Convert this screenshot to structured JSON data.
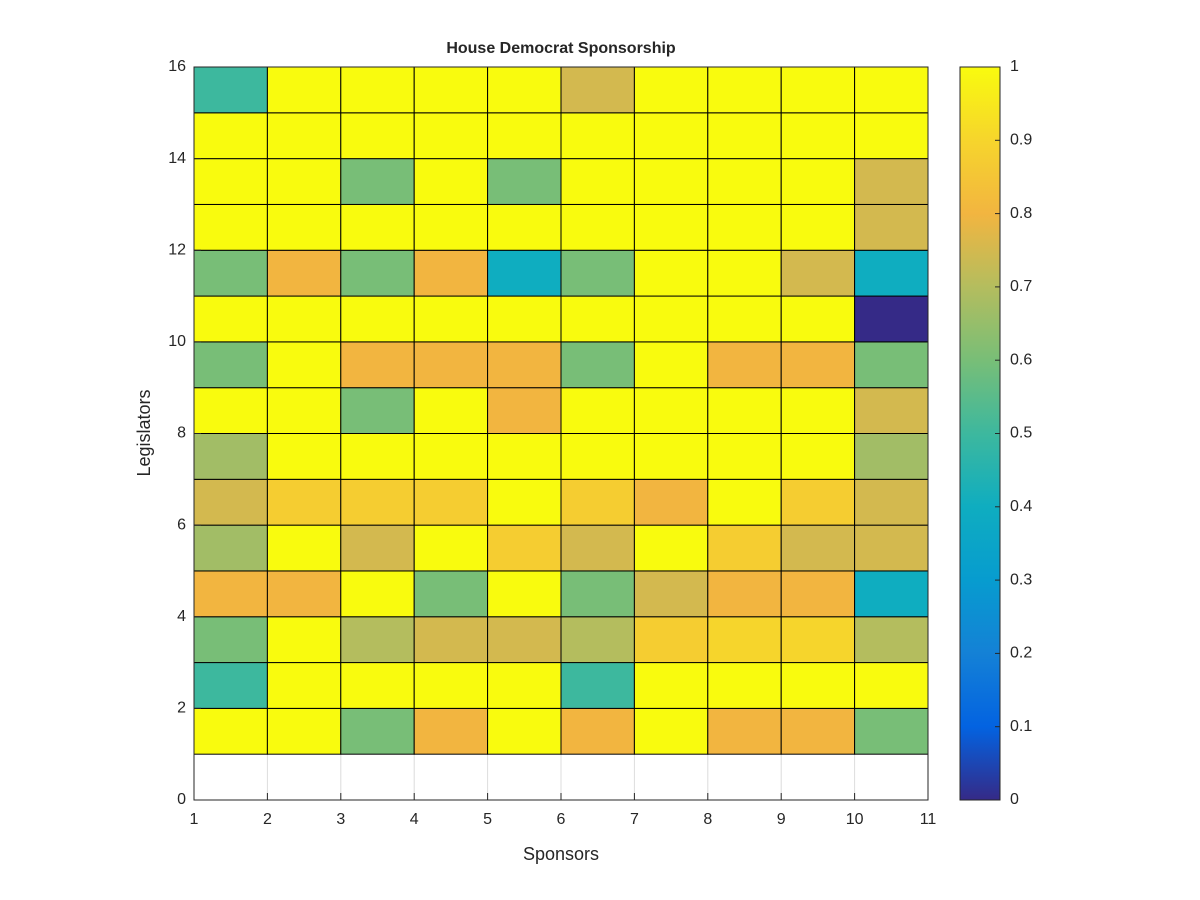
{
  "chart_data": {
    "type": "heatmap",
    "title": "House Democrat Sponsorship",
    "xlabel": "Sponsors",
    "ylabel": "Legislators",
    "x": [
      1,
      2,
      3,
      4,
      5,
      6,
      7,
      8,
      9,
      10,
      11
    ],
    "y": [
      1,
      2,
      3,
      4,
      5,
      6,
      7,
      8,
      9,
      10,
      11,
      12,
      13,
      14,
      15,
      16
    ],
    "z": [
      [
        1,
        1,
        0.6,
        0.8,
        1,
        0.8,
        1,
        0.8,
        0.8,
        0.6
      ],
      [
        0.5,
        1,
        1,
        1,
        1,
        0.5,
        1,
        1,
        1,
        1
      ],
      [
        0.6,
        1,
        0.7,
        0.75,
        0.75,
        0.7,
        0.875,
        0.9,
        0.9,
        0.7
      ],
      [
        0.8,
        0.8,
        1,
        0.6,
        1,
        0.6,
        0.75,
        0.8,
        0.8,
        0.4
      ],
      [
        0.67,
        1,
        0.75,
        1,
        0.875,
        0.75,
        1,
        0.875,
        0.75,
        0.75
      ],
      [
        0.75,
        0.875,
        0.875,
        0.875,
        1,
        0.875,
        0.8,
        1,
        0.875,
        0.75
      ],
      [
        0.67,
        1,
        1,
        1,
        1,
        1,
        1,
        1,
        1,
        0.67
      ],
      [
        1,
        1,
        0.6,
        1,
        0.8,
        1,
        1,
        1,
        1,
        0.75
      ],
      [
        0.6,
        1,
        0.8,
        0.8,
        0.8,
        0.6,
        1,
        0.8,
        0.8,
        0.6
      ],
      [
        1,
        1,
        1,
        1,
        1,
        1,
        1,
        1,
        1,
        0
      ],
      [
        0.6,
        0.8,
        0.6,
        0.8,
        0.4,
        0.6,
        1,
        1,
        0.75,
        0.4
      ],
      [
        1,
        1,
        1,
        1,
        1,
        1,
        1,
        1,
        1,
        0.75
      ],
      [
        1,
        1,
        0.6,
        1,
        0.6,
        1,
        1,
        1,
        1,
        0.75
      ],
      [
        1,
        1,
        1,
        1,
        1,
        1,
        1,
        1,
        1,
        1
      ],
      [
        0.5,
        1,
        1,
        1,
        1,
        0.75,
        1,
        1,
        1,
        1
      ]
    ],
    "xlim": [
      1,
      11
    ],
    "xticks": [
      1,
      2,
      3,
      4,
      5,
      6,
      7,
      8,
      9,
      10,
      11
    ],
    "ylim": [
      0,
      16
    ],
    "yticks": [
      0,
      2,
      4,
      6,
      8,
      10,
      12,
      14,
      16
    ],
    "grid": true,
    "colorbar": {
      "lim": [
        0,
        1
      ],
      "ticks": [
        0,
        0.1,
        0.2,
        0.3,
        0.4,
        0.5,
        0.6,
        0.7,
        0.8,
        0.9,
        1
      ]
    },
    "colormap": [
      "#352a87",
      "#0363e1",
      "#1481d6",
      "#079ccf",
      "#0fadc0",
      "#3db89e",
      "#78be77",
      "#b4bd5e",
      "#f2b540",
      "#f6d52c",
      "#f9fb0e"
    ]
  }
}
